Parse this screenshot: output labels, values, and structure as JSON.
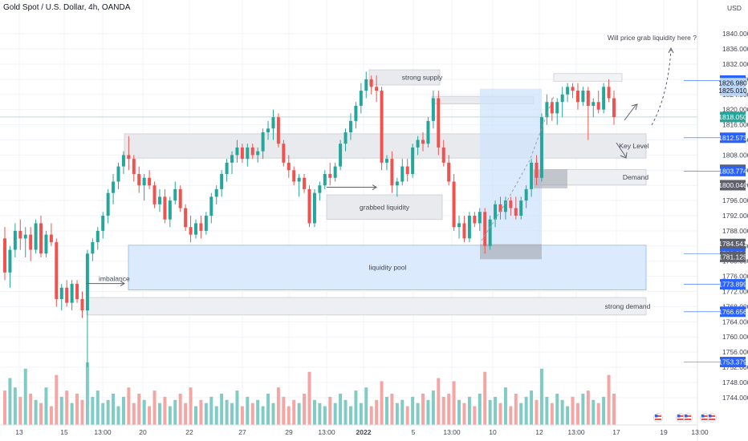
{
  "title": "Gold Spot / U.S. Dollar, 4h, OANDA",
  "currency": "USD",
  "colors": {
    "up": "#26a69a",
    "down": "#ef5350",
    "up_vol": "#80cbc4",
    "down_vol": "#f4a6a4",
    "zone_gray": "#e9eaee",
    "zone_blue": "#dbeafc",
    "tag_blue": "#2962ff",
    "tag_gray": "#5d606b",
    "tag_light": "#bbd6f5"
  },
  "chart_data": {
    "type": "candlestick",
    "title": "Gold Spot / U.S. Dollar, 4h, OANDA",
    "ylabel": "USD",
    "ylim": [
      1741,
      1843
    ],
    "y_ticks": [
      1744,
      1748,
      1752,
      1756,
      1760,
      1764,
      1768,
      1772,
      1776,
      1780,
      1784,
      1788,
      1792,
      1796,
      1800,
      1804,
      1808,
      1812,
      1816,
      1820,
      1824,
      1828,
      1832,
      1836,
      1840
    ],
    "x_ticks": [
      "13",
      "15",
      "13:00",
      "20",
      "22",
      "27",
      "29",
      "13:00",
      "2022",
      "5",
      "13:00",
      "10",
      "12",
      "13:00",
      "17",
      "19",
      "13:00"
    ],
    "candles": [
      {
        "o": 1786,
        "h": 1789,
        "l": 1775,
        "c": 1777
      },
      {
        "o": 1777,
        "h": 1784,
        "l": 1773,
        "c": 1783
      },
      {
        "o": 1783,
        "h": 1790,
        "l": 1781,
        "c": 1788
      },
      {
        "o": 1788,
        "h": 1791,
        "l": 1783,
        "c": 1786
      },
      {
        "o": 1786,
        "h": 1789,
        "l": 1781,
        "c": 1787
      },
      {
        "o": 1787,
        "h": 1789,
        "l": 1780,
        "c": 1783
      },
      {
        "o": 1783,
        "h": 1791,
        "l": 1782,
        "c": 1790
      },
      {
        "o": 1790,
        "h": 1792,
        "l": 1781,
        "c": 1782
      },
      {
        "o": 1782,
        "h": 1788,
        "l": 1781,
        "c": 1787
      },
      {
        "o": 1787,
        "h": 1790,
        "l": 1784,
        "c": 1785
      },
      {
        "o": 1785,
        "h": 1786,
        "l": 1768,
        "c": 1770
      },
      {
        "o": 1770,
        "h": 1774,
        "l": 1767,
        "c": 1773
      },
      {
        "o": 1773,
        "h": 1775,
        "l": 1768,
        "c": 1769
      },
      {
        "o": 1769,
        "h": 1775,
        "l": 1767,
        "c": 1774
      },
      {
        "o": 1774,
        "h": 1775,
        "l": 1769,
        "c": 1770
      },
      {
        "o": 1770,
        "h": 1772,
        "l": 1765,
        "c": 1767
      },
      {
        "o": 1767,
        "h": 1783,
        "l": 1752,
        "c": 1782
      },
      {
        "o": 1782,
        "h": 1786,
        "l": 1780,
        "c": 1785
      },
      {
        "o": 1785,
        "h": 1789,
        "l": 1783,
        "c": 1788
      },
      {
        "o": 1788,
        "h": 1793,
        "l": 1786,
        "c": 1792
      },
      {
        "o": 1792,
        "h": 1799,
        "l": 1790,
        "c": 1798
      },
      {
        "o": 1798,
        "h": 1803,
        "l": 1795,
        "c": 1801
      },
      {
        "o": 1801,
        "h": 1806,
        "l": 1799,
        "c": 1805
      },
      {
        "o": 1805,
        "h": 1809,
        "l": 1803,
        "c": 1808
      },
      {
        "o": 1808,
        "h": 1813,
        "l": 1804,
        "c": 1807
      },
      {
        "o": 1807,
        "h": 1808,
        "l": 1801,
        "c": 1803
      },
      {
        "o": 1803,
        "h": 1805,
        "l": 1798,
        "c": 1800
      },
      {
        "o": 1800,
        "h": 1803,
        "l": 1796,
        "c": 1802
      },
      {
        "o": 1802,
        "h": 1804,
        "l": 1799,
        "c": 1800
      },
      {
        "o": 1800,
        "h": 1801,
        "l": 1794,
        "c": 1795
      },
      {
        "o": 1795,
        "h": 1799,
        "l": 1793,
        "c": 1797
      },
      {
        "o": 1797,
        "h": 1799,
        "l": 1790,
        "c": 1791
      },
      {
        "o": 1791,
        "h": 1797,
        "l": 1789,
        "c": 1796
      },
      {
        "o": 1796,
        "h": 1801,
        "l": 1795,
        "c": 1799
      },
      {
        "o": 1799,
        "h": 1800,
        "l": 1793,
        "c": 1794
      },
      {
        "o": 1794,
        "h": 1795,
        "l": 1788,
        "c": 1789
      },
      {
        "o": 1789,
        "h": 1792,
        "l": 1785,
        "c": 1787
      },
      {
        "o": 1787,
        "h": 1791,
        "l": 1786,
        "c": 1790
      },
      {
        "o": 1790,
        "h": 1792,
        "l": 1786,
        "c": 1788
      },
      {
        "o": 1788,
        "h": 1793,
        "l": 1787,
        "c": 1792
      },
      {
        "o": 1792,
        "h": 1798,
        "l": 1790,
        "c": 1797
      },
      {
        "o": 1797,
        "h": 1800,
        "l": 1795,
        "c": 1799
      },
      {
        "o": 1799,
        "h": 1804,
        "l": 1797,
        "c": 1803
      },
      {
        "o": 1803,
        "h": 1807,
        "l": 1801,
        "c": 1806
      },
      {
        "o": 1806,
        "h": 1809,
        "l": 1803,
        "c": 1808
      },
      {
        "o": 1808,
        "h": 1812,
        "l": 1806,
        "c": 1810
      },
      {
        "o": 1810,
        "h": 1811,
        "l": 1806,
        "c": 1807
      },
      {
        "o": 1807,
        "h": 1811,
        "l": 1805,
        "c": 1810
      },
      {
        "o": 1810,
        "h": 1811,
        "l": 1807,
        "c": 1808
      },
      {
        "o": 1808,
        "h": 1810,
        "l": 1806,
        "c": 1809
      },
      {
        "o": 1809,
        "h": 1815,
        "l": 1807,
        "c": 1814
      },
      {
        "o": 1814,
        "h": 1817,
        "l": 1812,
        "c": 1815
      },
      {
        "o": 1815,
        "h": 1820,
        "l": 1812,
        "c": 1818
      },
      {
        "o": 1818,
        "h": 1819,
        "l": 1810,
        "c": 1811
      },
      {
        "o": 1811,
        "h": 1812,
        "l": 1805,
        "c": 1806
      },
      {
        "o": 1806,
        "h": 1808,
        "l": 1802,
        "c": 1804
      },
      {
        "o": 1804,
        "h": 1805,
        "l": 1800,
        "c": 1801
      },
      {
        "o": 1801,
        "h": 1803,
        "l": 1797,
        "c": 1802
      },
      {
        "o": 1802,
        "h": 1803,
        "l": 1798,
        "c": 1799
      },
      {
        "o": 1799,
        "h": 1800,
        "l": 1789,
        "c": 1790
      },
      {
        "o": 1790,
        "h": 1799,
        "l": 1789,
        "c": 1798
      },
      {
        "o": 1798,
        "h": 1801,
        "l": 1796,
        "c": 1800
      },
      {
        "o": 1800,
        "h": 1804,
        "l": 1799,
        "c": 1803
      },
      {
        "o": 1803,
        "h": 1806,
        "l": 1800,
        "c": 1802
      },
      {
        "o": 1802,
        "h": 1806,
        "l": 1801,
        "c": 1805
      },
      {
        "o": 1805,
        "h": 1812,
        "l": 1804,
        "c": 1811
      },
      {
        "o": 1811,
        "h": 1815,
        "l": 1809,
        "c": 1814
      },
      {
        "o": 1814,
        "h": 1819,
        "l": 1812,
        "c": 1817
      },
      {
        "o": 1817,
        "h": 1822,
        "l": 1815,
        "c": 1821
      },
      {
        "o": 1821,
        "h": 1827,
        "l": 1819,
        "c": 1825
      },
      {
        "o": 1825,
        "h": 1830,
        "l": 1823,
        "c": 1828
      },
      {
        "o": 1828,
        "h": 1829,
        "l": 1824,
        "c": 1826
      },
      {
        "o": 1826,
        "h": 1829,
        "l": 1822,
        "c": 1825
      },
      {
        "o": 1825,
        "h": 1826,
        "l": 1804,
        "c": 1806
      },
      {
        "o": 1806,
        "h": 1808,
        "l": 1804,
        "c": 1807
      },
      {
        "o": 1807,
        "h": 1809,
        "l": 1798,
        "c": 1800
      },
      {
        "o": 1800,
        "h": 1802,
        "l": 1797,
        "c": 1801
      },
      {
        "o": 1801,
        "h": 1807,
        "l": 1800,
        "c": 1805
      },
      {
        "o": 1805,
        "h": 1807,
        "l": 1801,
        "c": 1803
      },
      {
        "o": 1803,
        "h": 1811,
        "l": 1802,
        "c": 1810
      },
      {
        "o": 1810,
        "h": 1813,
        "l": 1808,
        "c": 1812
      },
      {
        "o": 1812,
        "h": 1814,
        "l": 1809,
        "c": 1811
      },
      {
        "o": 1811,
        "h": 1818,
        "l": 1810,
        "c": 1817
      },
      {
        "o": 1817,
        "h": 1825,
        "l": 1815,
        "c": 1823
      },
      {
        "o": 1823,
        "h": 1825,
        "l": 1808,
        "c": 1810
      },
      {
        "o": 1810,
        "h": 1812,
        "l": 1805,
        "c": 1806
      },
      {
        "o": 1806,
        "h": 1808,
        "l": 1800,
        "c": 1801
      },
      {
        "o": 1801,
        "h": 1803,
        "l": 1788,
        "c": 1789
      },
      {
        "o": 1789,
        "h": 1792,
        "l": 1786,
        "c": 1790
      },
      {
        "o": 1790,
        "h": 1792,
        "l": 1785,
        "c": 1786
      },
      {
        "o": 1786,
        "h": 1793,
        "l": 1785,
        "c": 1792
      },
      {
        "o": 1792,
        "h": 1793,
        "l": 1789,
        "c": 1790
      },
      {
        "o": 1790,
        "h": 1794,
        "l": 1788,
        "c": 1793
      },
      {
        "o": 1793,
        "h": 1794,
        "l": 1782,
        "c": 1784
      },
      {
        "o": 1784,
        "h": 1792,
        "l": 1783,
        "c": 1791
      },
      {
        "o": 1791,
        "h": 1796,
        "l": 1789,
        "c": 1795
      },
      {
        "o": 1795,
        "h": 1797,
        "l": 1791,
        "c": 1793
      },
      {
        "o": 1793,
        "h": 1797,
        "l": 1791,
        "c": 1796
      },
      {
        "o": 1796,
        "h": 1797,
        "l": 1792,
        "c": 1794
      },
      {
        "o": 1794,
        "h": 1797,
        "l": 1791,
        "c": 1792
      },
      {
        "o": 1792,
        "h": 1797,
        "l": 1791,
        "c": 1796
      },
      {
        "o": 1796,
        "h": 1800,
        "l": 1794,
        "c": 1799
      },
      {
        "o": 1799,
        "h": 1807,
        "l": 1797,
        "c": 1806
      },
      {
        "o": 1806,
        "h": 1808,
        "l": 1800,
        "c": 1802
      },
      {
        "o": 1802,
        "h": 1819,
        "l": 1801,
        "c": 1818
      },
      {
        "o": 1818,
        "h": 1824,
        "l": 1816,
        "c": 1822
      },
      {
        "o": 1822,
        "h": 1823,
        "l": 1817,
        "c": 1819
      },
      {
        "o": 1819,
        "h": 1823,
        "l": 1816,
        "c": 1822
      },
      {
        "o": 1822,
        "h": 1826,
        "l": 1818,
        "c": 1824
      },
      {
        "o": 1824,
        "h": 1827,
        "l": 1822,
        "c": 1826
      },
      {
        "o": 1826,
        "h": 1827,
        "l": 1823,
        "c": 1825
      },
      {
        "o": 1825,
        "h": 1827,
        "l": 1820,
        "c": 1822
      },
      {
        "o": 1822,
        "h": 1826,
        "l": 1821,
        "c": 1825
      },
      {
        "o": 1825,
        "h": 1826,
        "l": 1812,
        "c": 1821
      },
      {
        "o": 1821,
        "h": 1823,
        "l": 1818,
        "c": 1822
      },
      {
        "o": 1822,
        "h": 1825,
        "l": 1819,
        "c": 1820
      },
      {
        "o": 1820,
        "h": 1827,
        "l": 1819,
        "c": 1826
      },
      {
        "o": 1826,
        "h": 1828,
        "l": 1822,
        "c": 1823
      },
      {
        "o": 1823,
        "h": 1825,
        "l": 1816,
        "c": 1818
      }
    ],
    "volume": [
      0.55,
      0.75,
      0.6,
      0.45,
      0.9,
      0.5,
      0.4,
      0.35,
      0.6,
      0.3,
      0.8,
      0.45,
      0.55,
      0.35,
      0.5,
      0.4,
      1.0,
      0.45,
      0.55,
      0.35,
      0.4,
      0.5,
      0.3,
      0.45,
      0.6,
      0.35,
      0.5,
      0.4,
      0.3,
      0.55,
      0.35,
      0.45,
      0.3,
      0.4,
      0.5,
      0.35,
      0.6,
      0.3,
      0.4,
      0.35,
      0.45,
      0.3,
      0.5,
      0.4,
      0.35,
      0.55,
      0.3,
      0.45,
      0.35,
      0.4,
      0.3,
      0.5,
      0.35,
      0.6,
      0.45,
      0.3,
      0.4,
      0.35,
      0.5,
      0.85,
      0.4,
      0.35,
      0.3,
      0.45,
      0.35,
      0.5,
      0.4,
      0.3,
      0.55,
      0.35,
      0.6,
      0.3,
      0.4,
      0.7,
      0.45,
      0.5,
      0.35,
      0.4,
      0.3,
      0.45,
      0.35,
      0.5,
      0.4,
      0.55,
      0.75,
      0.45,
      0.5,
      0.7,
      0.4,
      0.35,
      0.45,
      0.3,
      0.5,
      0.85,
      0.4,
      0.45,
      0.35,
      0.6,
      0.3,
      0.5,
      0.35,
      0.45,
      0.55,
      0.4,
      0.9,
      0.45,
      0.35,
      0.5,
      0.4,
      0.3,
      0.45,
      0.35,
      0.5,
      0.55,
      0.4,
      0.35,
      0.45,
      0.8,
      0.5
    ],
    "zones": [
      {
        "label": "strong supply",
        "from": 6,
        "to": 13,
        "top": 1830.5,
        "bottom": 1826.5
      },
      {
        "label": "",
        "from": 59,
        "to": 68,
        "top": 1823.5,
        "bottom": 1821.5
      },
      {
        "label": "Key Level",
        "from": 0,
        "to": 100,
        "top": 1813.6,
        "bottom": 1807.2
      },
      {
        "label": "grabbed liquidity",
        "from": 18,
        "to": 27,
        "top": 1797.5,
        "bottom": 1791
      },
      {
        "label": "Demand",
        "from": 63,
        "to": 100,
        "top": 1804.2,
        "bottom": 1800.1
      },
      {
        "label": "liquidity pool",
        "from": 0,
        "to": 100,
        "top": 1784.2,
        "bottom": 1772.4
      },
      {
        "label": "strong demand",
        "from": 0,
        "to": 100,
        "top": 1770.4,
        "bottom": 1765.8
      },
      {
        "label": "imbalance",
        "from": 0,
        "to": 0,
        "top": 1774.1,
        "bottom": 1774.1
      }
    ],
    "annotations": [
      "Will price grab liquidity here ?",
      "imbalance"
    ],
    "price_tags": [
      {
        "value": "1827.666",
        "style": "blue"
      },
      {
        "value": "1826.980",
        "style": "light"
      },
      {
        "value": "1825.010",
        "style": "light"
      },
      {
        "value": "1818.050",
        "style": "green"
      },
      {
        "value": "1812.573",
        "style": "blue"
      },
      {
        "value": "1804.117",
        "style": "gray"
      },
      {
        "value": "1803.774",
        "style": "blue"
      },
      {
        "value": "1800.046",
        "style": "gray"
      },
      {
        "value": "1784.541",
        "style": "gray"
      },
      {
        "value": "1781.896",
        "style": "blue"
      },
      {
        "value": "1781.125",
        "style": "gray"
      },
      {
        "value": "1773.899",
        "style": "blue"
      },
      {
        "value": "1766.656",
        "style": "blue"
      },
      {
        "value": "1753.379",
        "style": "blue"
      }
    ]
  }
}
